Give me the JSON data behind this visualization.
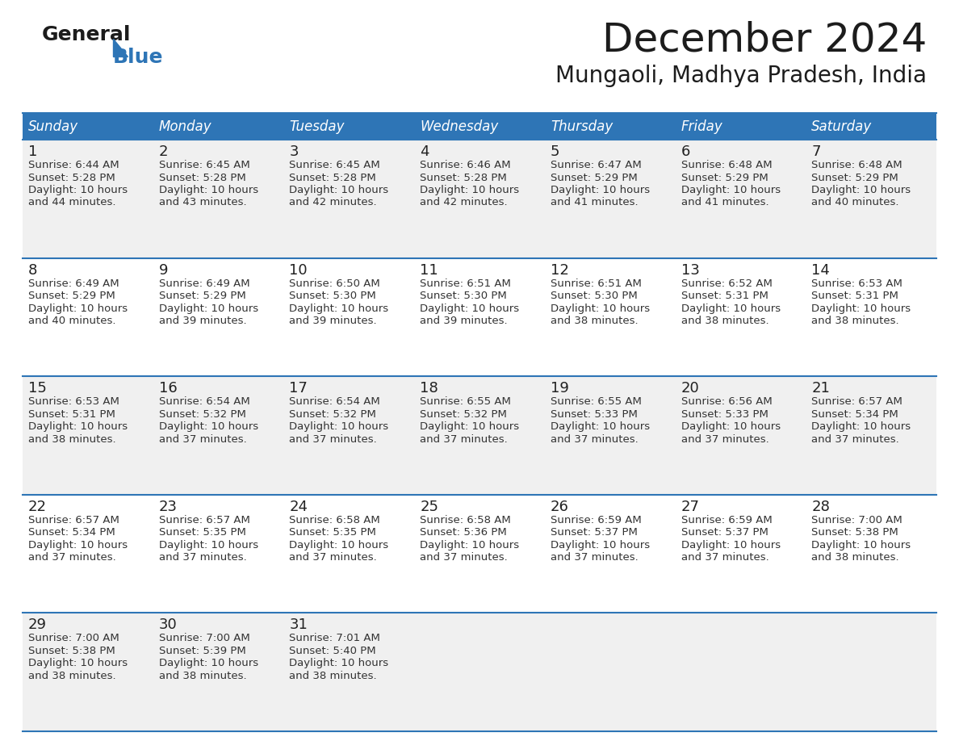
{
  "title": "December 2024",
  "subtitle": "Mungaoli, Madhya Pradesh, India",
  "days_of_week": [
    "Sunday",
    "Monday",
    "Tuesday",
    "Wednesday",
    "Thursday",
    "Friday",
    "Saturday"
  ],
  "header_bg": "#2E75B6",
  "header_text": "#FFFFFF",
  "row_bg_odd": "#F0F0F0",
  "row_bg_even": "#FFFFFF",
  "cell_border": "#2E75B6",
  "day_number_color": "#222222",
  "info_text_color": "#333333",
  "calendar_data": [
    [
      {
        "day": 1,
        "sunrise": "6:44 AM",
        "sunset": "5:28 PM",
        "daylight_extra": "44 minutes."
      },
      {
        "day": 2,
        "sunrise": "6:45 AM",
        "sunset": "5:28 PM",
        "daylight_extra": "43 minutes."
      },
      {
        "day": 3,
        "sunrise": "6:45 AM",
        "sunset": "5:28 PM",
        "daylight_extra": "42 minutes."
      },
      {
        "day": 4,
        "sunrise": "6:46 AM",
        "sunset": "5:28 PM",
        "daylight_extra": "42 minutes."
      },
      {
        "day": 5,
        "sunrise": "6:47 AM",
        "sunset": "5:29 PM",
        "daylight_extra": "41 minutes."
      },
      {
        "day": 6,
        "sunrise": "6:48 AM",
        "sunset": "5:29 PM",
        "daylight_extra": "41 minutes."
      },
      {
        "day": 7,
        "sunrise": "6:48 AM",
        "sunset": "5:29 PM",
        "daylight_extra": "40 minutes."
      }
    ],
    [
      {
        "day": 8,
        "sunrise": "6:49 AM",
        "sunset": "5:29 PM",
        "daylight_extra": "40 minutes."
      },
      {
        "day": 9,
        "sunrise": "6:49 AM",
        "sunset": "5:29 PM",
        "daylight_extra": "39 minutes."
      },
      {
        "day": 10,
        "sunrise": "6:50 AM",
        "sunset": "5:30 PM",
        "daylight_extra": "39 minutes."
      },
      {
        "day": 11,
        "sunrise": "6:51 AM",
        "sunset": "5:30 PM",
        "daylight_extra": "39 minutes."
      },
      {
        "day": 12,
        "sunrise": "6:51 AM",
        "sunset": "5:30 PM",
        "daylight_extra": "38 minutes."
      },
      {
        "day": 13,
        "sunrise": "6:52 AM",
        "sunset": "5:31 PM",
        "daylight_extra": "38 minutes."
      },
      {
        "day": 14,
        "sunrise": "6:53 AM",
        "sunset": "5:31 PM",
        "daylight_extra": "38 minutes."
      }
    ],
    [
      {
        "day": 15,
        "sunrise": "6:53 AM",
        "sunset": "5:31 PM",
        "daylight_extra": "38 minutes."
      },
      {
        "day": 16,
        "sunrise": "6:54 AM",
        "sunset": "5:32 PM",
        "daylight_extra": "37 minutes."
      },
      {
        "day": 17,
        "sunrise": "6:54 AM",
        "sunset": "5:32 PM",
        "daylight_extra": "37 minutes."
      },
      {
        "day": 18,
        "sunrise": "6:55 AM",
        "sunset": "5:32 PM",
        "daylight_extra": "37 minutes."
      },
      {
        "day": 19,
        "sunrise": "6:55 AM",
        "sunset": "5:33 PM",
        "daylight_extra": "37 minutes."
      },
      {
        "day": 20,
        "sunrise": "6:56 AM",
        "sunset": "5:33 PM",
        "daylight_extra": "37 minutes."
      },
      {
        "day": 21,
        "sunrise": "6:57 AM",
        "sunset": "5:34 PM",
        "daylight_extra": "37 minutes."
      }
    ],
    [
      {
        "day": 22,
        "sunrise": "6:57 AM",
        "sunset": "5:34 PM",
        "daylight_extra": "37 minutes."
      },
      {
        "day": 23,
        "sunrise": "6:57 AM",
        "sunset": "5:35 PM",
        "daylight_extra": "37 minutes."
      },
      {
        "day": 24,
        "sunrise": "6:58 AM",
        "sunset": "5:35 PM",
        "daylight_extra": "37 minutes."
      },
      {
        "day": 25,
        "sunrise": "6:58 AM",
        "sunset": "5:36 PM",
        "daylight_extra": "37 minutes."
      },
      {
        "day": 26,
        "sunrise": "6:59 AM",
        "sunset": "5:37 PM",
        "daylight_extra": "37 minutes."
      },
      {
        "day": 27,
        "sunrise": "6:59 AM",
        "sunset": "5:37 PM",
        "daylight_extra": "37 minutes."
      },
      {
        "day": 28,
        "sunrise": "7:00 AM",
        "sunset": "5:38 PM",
        "daylight_extra": "38 minutes."
      }
    ],
    [
      {
        "day": 29,
        "sunrise": "7:00 AM",
        "sunset": "5:38 PM",
        "daylight_extra": "38 minutes."
      },
      {
        "day": 30,
        "sunrise": "7:00 AM",
        "sunset": "5:39 PM",
        "daylight_extra": "38 minutes."
      },
      {
        "day": 31,
        "sunrise": "7:01 AM",
        "sunset": "5:40 PM",
        "daylight_extra": "38 minutes."
      },
      null,
      null,
      null,
      null
    ]
  ],
  "logo_text_general": "General",
  "logo_text_blue": "Blue",
  "logo_triangle_color": "#2E75B6",
  "title_fontsize": 36,
  "subtitle_fontsize": 20,
  "header_fontsize": 12,
  "day_num_fontsize": 13,
  "info_fontsize": 9.5
}
